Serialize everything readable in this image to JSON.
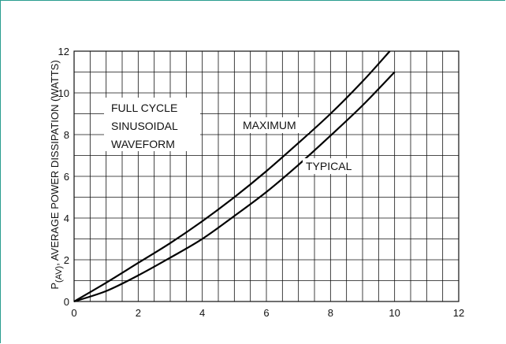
{
  "chart_data": {
    "type": "line",
    "xlabel": "",
    "ylabel": {
      "main": "P",
      "subscript": "(AV)",
      "rest": ", AVERAGE POWER DISSIPATION (WATTS)"
    },
    "xlim": [
      0,
      12
    ],
    "ylim": [
      0,
      12
    ],
    "x_ticks": [
      "0",
      "2",
      "4",
      "6",
      "8",
      "10",
      "12"
    ],
    "y_ticks": [
      "0",
      "2",
      "4",
      "6",
      "8",
      "10",
      "12"
    ],
    "grid": true,
    "annotations": {
      "condition_lines": [
        "FULL CYCLE",
        "SINUSOIDAL",
        "WAVEFORM"
      ],
      "maximum_label": "MAXIMUM",
      "typical_label": "TYPICAL"
    },
    "series": [
      {
        "name": "MAXIMUM",
        "x": [
          0,
          1,
          2,
          3,
          4,
          5,
          6,
          7,
          8,
          9,
          9.85
        ],
        "y": [
          0,
          0.9,
          1.85,
          2.8,
          3.85,
          5.0,
          6.25,
          7.6,
          9.0,
          10.55,
          12.0
        ]
      },
      {
        "name": "TYPICAL",
        "x": [
          0,
          1,
          2,
          3,
          4,
          5,
          6,
          7,
          8,
          9,
          10
        ],
        "y": [
          0,
          0.5,
          1.25,
          2.1,
          3.0,
          4.1,
          5.25,
          6.55,
          7.95,
          9.4,
          11.0
        ]
      }
    ]
  }
}
